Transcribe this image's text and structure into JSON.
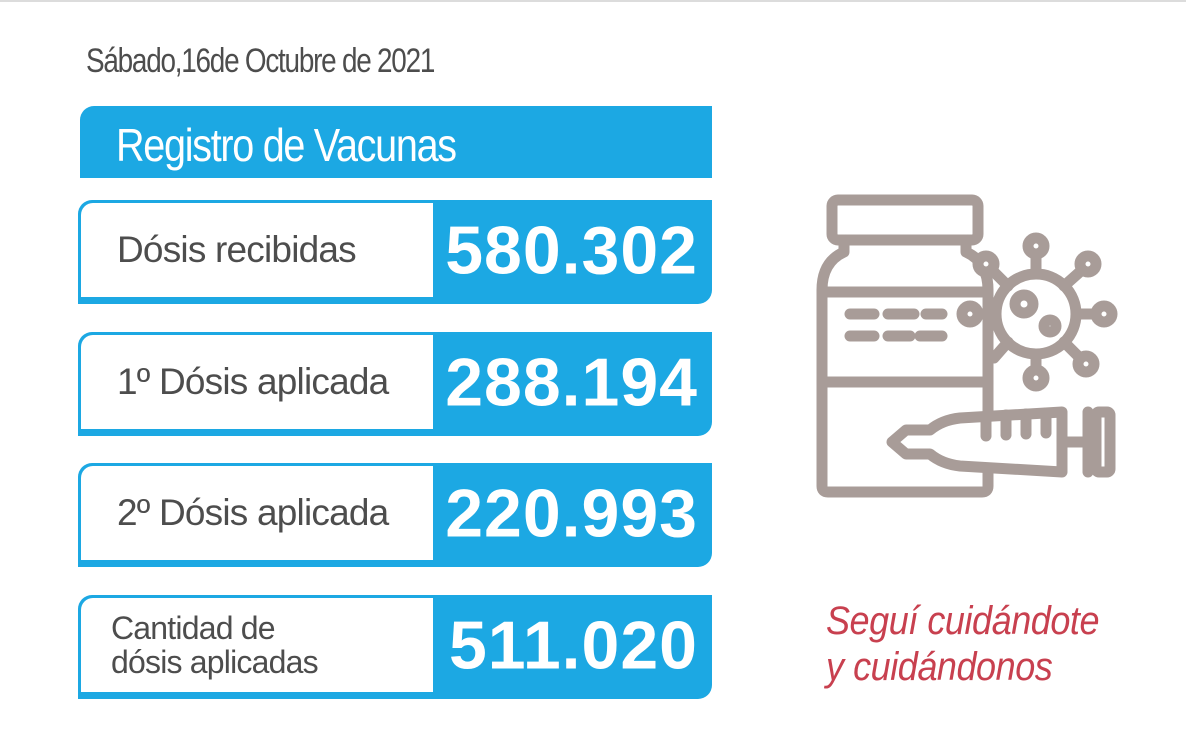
{
  "date": "Sábado,16de Octubre de 2021",
  "header": {
    "title": "Registro de Vacunas"
  },
  "rows": [
    {
      "label": "Dósis recibidas",
      "value": "580.302"
    },
    {
      "label": "1º Dósis aplicada",
      "value": "288.194"
    },
    {
      "label": "2º Dósis aplicada",
      "value": "220.993"
    },
    {
      "label_line1": "Cantidad de",
      "label_line2": "dósis aplicadas",
      "value": "511.020"
    }
  ],
  "slogan": {
    "line1": "Seguí cuidándote",
    "line2": "y cuidándonos"
  },
  "icons": {
    "illustration": "vaccine-vial-virus-syringe-icon"
  },
  "colors": {
    "accent": "#1ca8e3",
    "text": "#4d4d4d",
    "slogan": "#c8404f",
    "icon": "#a89c98"
  }
}
